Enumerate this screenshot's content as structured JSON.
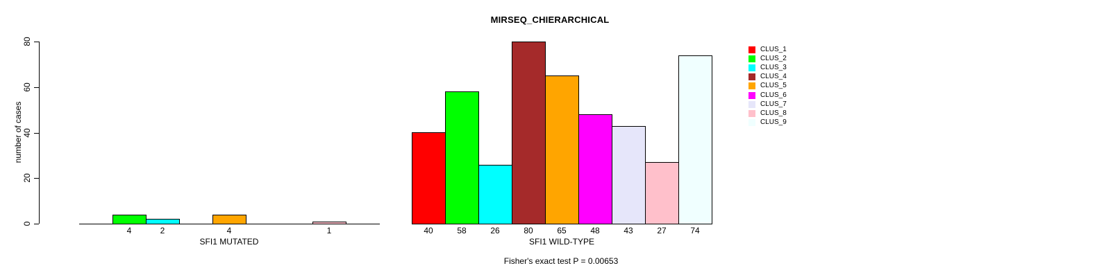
{
  "title": "MIRSEQ_CHIERARCHICAL",
  "y_axis": {
    "label": "number of cases",
    "tick_labels": [
      "0",
      "20",
      "40",
      "60",
      "80"
    ]
  },
  "footer": {
    "text": "Fisher's exact test P = 0.00653"
  },
  "legend": {
    "items": [
      {
        "label": "CLUS_1",
        "color": "#FF0000"
      },
      {
        "label": "CLUS_2",
        "color": "#00FF00"
      },
      {
        "label": "CLUS_3",
        "color": "#00FFFF"
      },
      {
        "label": "CLUS_4",
        "color": "#A52A2A"
      },
      {
        "label": "CLUS_5",
        "color": "#FFA500"
      },
      {
        "label": "CLUS_6",
        "color": "#FF00FF"
      },
      {
        "label": "CLUS_7",
        "color": "#E6E6FA"
      },
      {
        "label": "CLUS_8",
        "color": "#FFC0CB"
      },
      {
        "label": "CLUS_9",
        "color": "#F0FFFF"
      }
    ]
  },
  "chart_data": {
    "type": "bar",
    "title": "MIRSEQ_CHIERARCHICAL",
    "xlabel": "",
    "ylabel": "number of cases",
    "ylim": [
      0,
      80
    ],
    "yticks": [
      0,
      20,
      40,
      60,
      80
    ],
    "grid": false,
    "legend_position": "right-outside",
    "categories": [
      "CLUS_1",
      "CLUS_2",
      "CLUS_3",
      "CLUS_4",
      "CLUS_5",
      "CLUS_6",
      "CLUS_7",
      "CLUS_8",
      "CLUS_9"
    ],
    "colors": [
      "#FF0000",
      "#00FF00",
      "#00FFFF",
      "#A52A2A",
      "#FFA500",
      "#FF00FF",
      "#E6E6FA",
      "#FFC0CB",
      "#F0FFFF"
    ],
    "series": [
      {
        "name": "SFI1 MUTATED",
        "values": [
          0,
          4,
          2,
          0,
          4,
          0,
          0,
          1,
          0
        ]
      },
      {
        "name": "SFI1 WILD-TYPE",
        "values": [
          40,
          58,
          26,
          80,
          65,
          48,
          43,
          27,
          74
        ]
      }
    ],
    "bar_label_rule": "value printed under each drawn bar; zero-value bars are not drawn",
    "annotation": "Fisher's exact test P = 0.00653"
  }
}
